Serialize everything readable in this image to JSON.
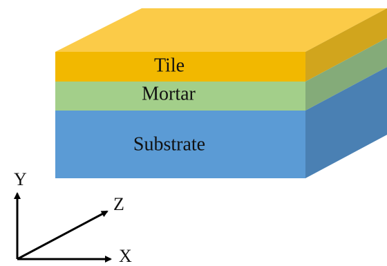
{
  "layers": [
    {
      "label": "Tile"
    },
    {
      "label": "Mortar"
    },
    {
      "label": "Substrate"
    }
  ],
  "axes": {
    "y": "Y",
    "z": "Z",
    "x": "X"
  }
}
